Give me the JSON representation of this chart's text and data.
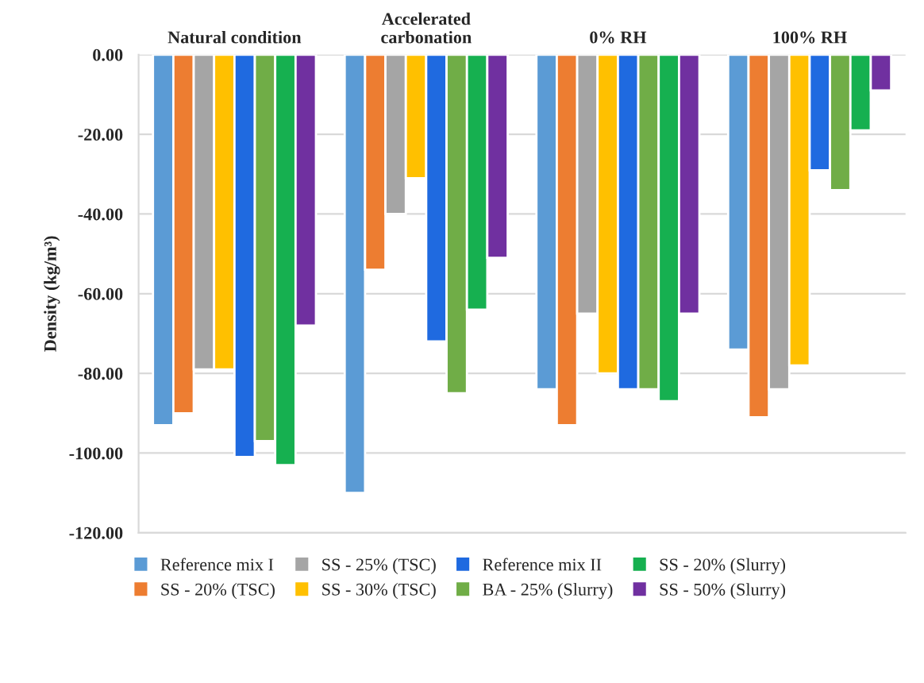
{
  "chart_data": {
    "type": "bar",
    "ylabel": "Density (kg/m³)",
    "categories": [
      "Natural condition",
      "Accelerated\ncarbonation",
      "0% RH",
      "100% RH"
    ],
    "series": [
      {
        "name": "Reference mix I",
        "color": "#5b9bd5",
        "values": [
          -93,
          -110,
          -84,
          -74
        ]
      },
      {
        "name": "SS - 20% (TSC)",
        "color": "#ed7d31",
        "values": [
          -90,
          -54,
          -93,
          -91
        ]
      },
      {
        "name": "SS - 25% (TSC)",
        "color": "#a5a5a5",
        "values": [
          -79,
          -40,
          -65,
          -84
        ]
      },
      {
        "name": "SS - 30% (TSC)",
        "color": "#ffc000",
        "values": [
          -79,
          -31,
          -80,
          -78
        ]
      },
      {
        "name": "Reference mix II",
        "color": "#1f6ae0",
        "values": [
          -101,
          -72,
          -84,
          -29
        ]
      },
      {
        "name": "BA - 25% (Slurry)",
        "color": "#70ad47",
        "values": [
          -97,
          -85,
          -84,
          -34
        ]
      },
      {
        "name": "SS - 20% (Slurry)",
        "color": "#16b050",
        "values": [
          -103,
          -64,
          -87,
          -19
        ]
      },
      {
        "name": "SS - 50% (Slurry)",
        "color": "#7030a0",
        "values": [
          -68,
          -51,
          -65,
          -9
        ]
      }
    ],
    "ylim": [
      -120,
      0
    ],
    "yticks": [
      {
        "value": 0,
        "label": "0.00"
      },
      {
        "value": -20,
        "label": "-20.00"
      },
      {
        "value": -40,
        "label": "-40.00"
      },
      {
        "value": -60,
        "label": "-60.00"
      },
      {
        "value": -80,
        "label": "-80.00"
      },
      {
        "value": -100,
        "label": "-100.00"
      },
      {
        "value": -120,
        "label": "-120.00"
      }
    ],
    "grid": "y",
    "legend": "bottom"
  }
}
